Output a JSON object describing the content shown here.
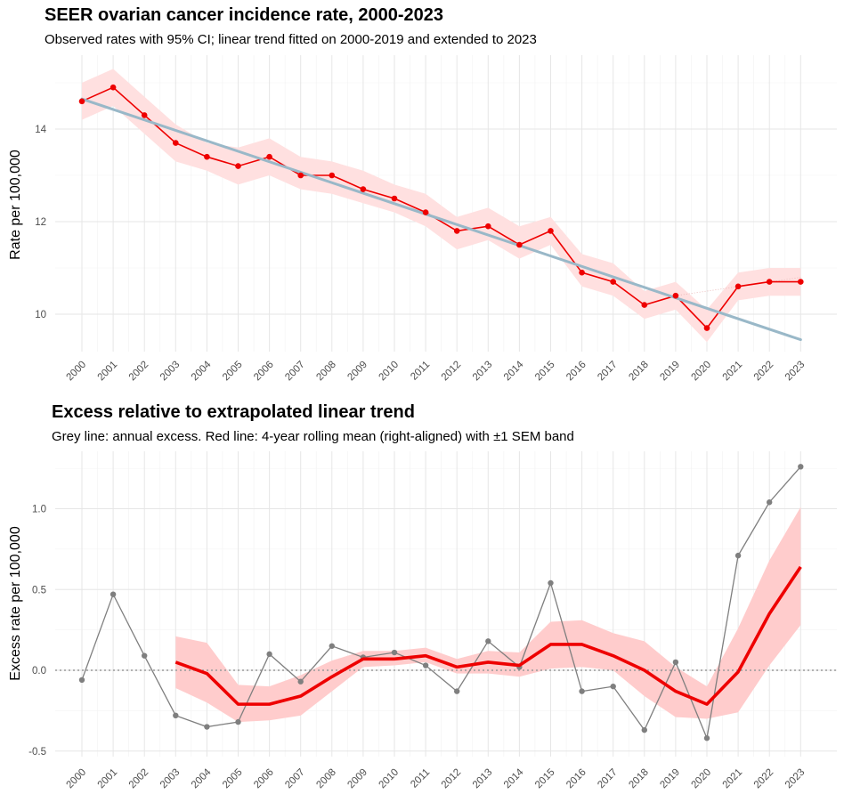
{
  "chart_data": [
    {
      "type": "line",
      "title": "SEER ovarian cancer incidence rate, 2000-2023",
      "subtitle": "Observed rates with 95% CI; linear trend fitted on 2000-2019 and extended to 2023",
      "xlabel": "",
      "ylabel": "Rate per 100,000",
      "ylim": [
        9.1,
        15.8
      ],
      "yticks": [
        "10",
        "12",
        "14"
      ],
      "x": [
        "2000",
        "2001",
        "2002",
        "2003",
        "2004",
        "2005",
        "2006",
        "2007",
        "2008",
        "2009",
        "2010",
        "2011",
        "2012",
        "2013",
        "2014",
        "2015",
        "2016",
        "2017",
        "2018",
        "2019",
        "2020",
        "2021",
        "2022",
        "2023"
      ],
      "series": [
        {
          "name": "Observed rate",
          "color": "#ee0000",
          "values": [
            14.6,
            14.9,
            14.3,
            13.7,
            13.4,
            13.2,
            13.4,
            13.0,
            13.0,
            12.7,
            12.5,
            12.2,
            11.8,
            11.9,
            11.5,
            11.8,
            10.9,
            10.7,
            10.2,
            10.4,
            9.7,
            10.6,
            10.7,
            10.7
          ]
        },
        {
          "name": "95% CI lower",
          "color": "#ffe0e0",
          "values": [
            14.2,
            14.5,
            13.9,
            13.3,
            13.1,
            12.8,
            13.0,
            12.7,
            12.6,
            12.4,
            12.2,
            11.9,
            11.4,
            11.6,
            11.2,
            11.5,
            10.6,
            10.4,
            9.9,
            10.1,
            9.4,
            10.3,
            10.4,
            10.4
          ]
        },
        {
          "name": "95% CI upper",
          "color": "#ffe0e0",
          "values": [
            15.0,
            15.3,
            14.7,
            14.1,
            13.7,
            13.6,
            13.8,
            13.4,
            13.3,
            13.1,
            12.8,
            12.6,
            12.1,
            12.3,
            11.9,
            12.1,
            11.3,
            11.1,
            10.5,
            10.7,
            10.1,
            10.9,
            11.0,
            11.0
          ]
        },
        {
          "name": "Linear trend (2000-2019, extended to 2023)",
          "color": "#99b8c8",
          "start": 14.65,
          "end": 9.45
        }
      ]
    },
    {
      "type": "line",
      "title": "Excess relative to extrapolated linear trend",
      "subtitle": "Grey line: annual excess. Red line: 4-year rolling mean (right-aligned) with ±1 SEM band",
      "xlabel": "",
      "ylabel": "Excess rate per 100,000",
      "ylim": [
        -0.51,
        1.31
      ],
      "yticks": [
        "-0.5",
        "0.0",
        "0.5",
        "1.0"
      ],
      "reference_line": 0.0,
      "x": [
        "2000",
        "2001",
        "2002",
        "2003",
        "2004",
        "2005",
        "2006",
        "2007",
        "2008",
        "2009",
        "2010",
        "2011",
        "2012",
        "2013",
        "2014",
        "2015",
        "2016",
        "2017",
        "2018",
        "2019",
        "2020",
        "2021",
        "2022",
        "2023"
      ],
      "series": [
        {
          "name": "Annual excess",
          "color": "#7f7f7f",
          "values": [
            -0.06,
            0.47,
            0.09,
            -0.28,
            -0.35,
            -0.32,
            0.1,
            -0.07,
            0.15,
            0.08,
            0.11,
            0.03,
            -0.13,
            0.18,
            0.02,
            0.54,
            -0.13,
            -0.1,
            -0.37,
            0.05,
            -0.42,
            0.71,
            1.04,
            1.26
          ]
        },
        {
          "name": "4-year rolling mean",
          "color": "#ee0000",
          "values": [
            null,
            null,
            null,
            0.05,
            -0.02,
            -0.21,
            -0.21,
            -0.16,
            -0.04,
            0.07,
            0.07,
            0.09,
            0.02,
            0.05,
            0.03,
            0.16,
            0.16,
            0.09,
            0.0,
            -0.13,
            -0.21,
            -0.01,
            0.35,
            0.64
          ]
        },
        {
          "name": "SEM lower",
          "color": "#ffcccc",
          "values": [
            null,
            null,
            null,
            -0.11,
            -0.2,
            -0.32,
            -0.31,
            -0.28,
            -0.13,
            0.02,
            0.03,
            0.05,
            -0.02,
            -0.02,
            -0.04,
            0.01,
            0.02,
            0.0,
            -0.16,
            -0.29,
            -0.3,
            -0.26,
            0.03,
            0.28
          ]
        },
        {
          "name": "SEM upper",
          "color": "#ffcccc",
          "values": [
            null,
            null,
            null,
            0.21,
            0.17,
            -0.09,
            -0.1,
            -0.03,
            0.06,
            0.12,
            0.12,
            0.14,
            0.07,
            0.12,
            0.11,
            0.3,
            0.31,
            0.23,
            0.18,
            0.02,
            -0.1,
            0.26,
            0.68,
            1.01
          ]
        }
      ]
    }
  ]
}
